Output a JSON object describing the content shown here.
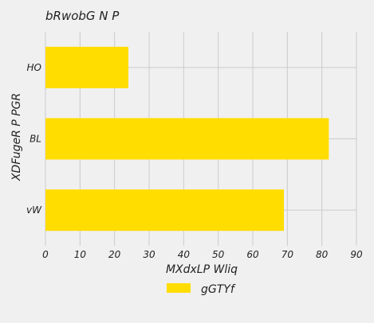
{
  "chart_data": {
    "type": "bar",
    "orientation": "horizontal",
    "title": "bRwobG N  P",
    "xlabel": "MXdxLP Wliq",
    "ylabel": "XDFugeR P PGR",
    "categories": [
      "HO",
      "BL",
      "vW"
    ],
    "series": [
      {
        "name": "gGTYf",
        "values": [
          24,
          82,
          69
        ]
      }
    ],
    "xlim": [
      0,
      90
    ],
    "xticks": [
      "0",
      "10",
      "20",
      "30",
      "40",
      "50",
      "60",
      "70",
      "80",
      "90"
    ],
    "grid": true,
    "legend_position": "bottom-center",
    "colors": {
      "bar": "#ffdd00",
      "background": "#f0f0f0",
      "grid": "#cbcbcb"
    }
  }
}
